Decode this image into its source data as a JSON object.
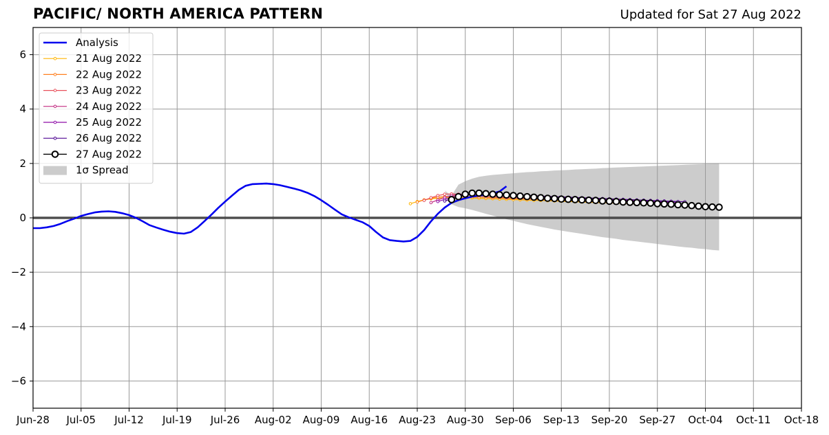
{
  "chart_data": {
    "type": "line",
    "title": "PACIFIC/ NORTH AMERICA PATTERN",
    "subtitle": "Updated for Sat 27 Aug 2022",
    "xlabel": "",
    "ylabel": "",
    "x_range": [
      "2022-06-28",
      "2022-10-18"
    ],
    "ylim": [
      -7,
      7
    ],
    "yticks": [
      -6,
      -4,
      -2,
      0,
      2,
      4,
      6
    ],
    "ytick_labels": [
      "−6",
      "−4",
      "−2",
      "0",
      "2",
      "4",
      "6"
    ],
    "xticks": [
      "2022-06-28",
      "2022-07-05",
      "2022-07-12",
      "2022-07-19",
      "2022-07-26",
      "2022-08-02",
      "2022-08-09",
      "2022-08-16",
      "2022-08-23",
      "2022-08-30",
      "2022-09-06",
      "2022-09-13",
      "2022-09-20",
      "2022-09-27",
      "2022-10-04",
      "2022-10-11",
      "2022-10-18"
    ],
    "xtick_labels": [
      "Jun-28",
      "Jul-05",
      "Jul-12",
      "Jul-19",
      "Jul-26",
      "Aug-02",
      "Aug-09",
      "Aug-16",
      "Aug-23",
      "Aug-30",
      "Sep-06",
      "Sep-13",
      "Sep-20",
      "Sep-27",
      "Oct-04",
      "Oct-11",
      "Oct-18"
    ],
    "grid": true,
    "zero_line": true,
    "legend_position": "top-left",
    "colors": {
      "analysis": "#0000ee",
      "spread": "#cccccc",
      "grid": "#999999"
    },
    "analysis": {
      "name": "Analysis",
      "start_date": "2022-06-28",
      "values": [
        -0.38,
        -0.38,
        -0.35,
        -0.3,
        -0.22,
        -0.12,
        -0.03,
        0.07,
        0.14,
        0.2,
        0.23,
        0.24,
        0.22,
        0.17,
        0.1,
        0.0,
        -0.13,
        -0.27,
        -0.36,
        -0.44,
        -0.51,
        -0.56,
        -0.58,
        -0.52,
        -0.35,
        -0.12,
        0.12,
        0.37,
        0.6,
        0.82,
        1.03,
        1.18,
        1.24,
        1.25,
        1.26,
        1.24,
        1.2,
        1.14,
        1.08,
        1.01,
        0.92,
        0.8,
        0.65,
        0.48,
        0.3,
        0.13,
        0.02,
        -0.07,
        -0.16,
        -0.3,
        -0.52,
        -0.72,
        -0.82,
        -0.85,
        -0.87,
        -0.85,
        -0.7,
        -0.45,
        -0.13,
        0.15,
        0.38,
        0.55,
        0.65,
        0.72,
        0.78,
        0.82,
        0.85,
        0.9,
        0.97,
        1.16
      ]
    },
    "forecasts": [
      {
        "name": "21 Aug 2022",
        "color": "#ffb400",
        "start_date": "2022-08-22",
        "values": [
          0.52,
          0.6,
          0.66,
          0.7,
          0.72,
          0.74,
          0.75,
          0.75,
          0.74,
          0.73,
          0.72,
          0.71,
          0.7,
          0.69,
          0.68,
          0.67,
          0.66,
          0.65,
          0.64,
          0.64,
          0.63,
          0.62,
          0.61,
          0.6,
          0.59,
          0.58,
          0.57,
          0.56,
          0.55,
          0.55,
          0.54,
          0.53,
          0.52,
          0.51,
          0.5,
          0.49
        ]
      },
      {
        "name": "22 Aug 2022",
        "color": "#ff7f1e",
        "start_date": "2022-08-23",
        "values": [
          0.58,
          0.66,
          0.72,
          0.76,
          0.78,
          0.79,
          0.79,
          0.78,
          0.77,
          0.76,
          0.75,
          0.74,
          0.73,
          0.72,
          0.71,
          0.7,
          0.69,
          0.68,
          0.67,
          0.66,
          0.65,
          0.64,
          0.63,
          0.62,
          0.61,
          0.6,
          0.59,
          0.58,
          0.57,
          0.56,
          0.55,
          0.54,
          0.53,
          0.52,
          0.51,
          0.5
        ]
      },
      {
        "name": "23 Aug 2022",
        "color": "#e8505b",
        "start_date": "2022-08-24",
        "values": [
          0.64,
          0.74,
          0.82,
          0.87,
          0.88,
          0.87,
          0.85,
          0.83,
          0.81,
          0.79,
          0.77,
          0.76,
          0.74,
          0.73,
          0.72,
          0.71,
          0.7,
          0.69,
          0.68,
          0.67,
          0.66,
          0.65,
          0.64,
          0.63,
          0.62,
          0.61,
          0.6,
          0.59,
          0.58,
          0.57,
          0.56,
          0.55,
          0.54,
          0.53,
          0.52,
          0.51
        ]
      },
      {
        "name": "24 Aug 2022",
        "color": "#c0267e",
        "start_date": "2022-08-25",
        "values": [
          0.56,
          0.66,
          0.75,
          0.82,
          0.86,
          0.88,
          0.88,
          0.87,
          0.86,
          0.84,
          0.82,
          0.8,
          0.79,
          0.77,
          0.76,
          0.75,
          0.74,
          0.73,
          0.72,
          0.71,
          0.7,
          0.69,
          0.68,
          0.67,
          0.66,
          0.65,
          0.64,
          0.63,
          0.62,
          0.61,
          0.6,
          0.59,
          0.58,
          0.57,
          0.56,
          0.55
        ]
      },
      {
        "name": "25 Aug 2022",
        "color": "#8e0ca8",
        "start_date": "2022-08-26",
        "values": [
          0.6,
          0.68,
          0.76,
          0.82,
          0.86,
          0.88,
          0.89,
          0.88,
          0.87,
          0.86,
          0.84,
          0.83,
          0.81,
          0.8,
          0.78,
          0.77,
          0.76,
          0.75,
          0.74,
          0.73,
          0.72,
          0.71,
          0.7,
          0.69,
          0.68,
          0.67,
          0.66,
          0.65,
          0.64,
          0.63,
          0.62,
          0.61,
          0.6,
          0.59,
          0.58,
          0.57
        ]
      },
      {
        "name": "26 Aug 2022",
        "color": "#4b0090",
        "start_date": "2022-08-27",
        "values": [
          0.62,
          0.7,
          0.78,
          0.84,
          0.88,
          0.9,
          0.91,
          0.9,
          0.89,
          0.88,
          0.86,
          0.85,
          0.83,
          0.82,
          0.8,
          0.79,
          0.78,
          0.77,
          0.76,
          0.75,
          0.74,
          0.73,
          0.72,
          0.71,
          0.7,
          0.69,
          0.68,
          0.67,
          0.66,
          0.65,
          0.64,
          0.63,
          0.62,
          0.61,
          0.6,
          0.59
        ]
      },
      {
        "name": "27 Aug 2022",
        "color": "#000000",
        "start_date": "2022-08-28",
        "marker": "open-circle",
        "values": [
          0.67,
          0.78,
          0.87,
          0.91,
          0.91,
          0.89,
          0.87,
          0.85,
          0.84,
          0.82,
          0.8,
          0.78,
          0.76,
          0.74,
          0.72,
          0.71,
          0.69,
          0.68,
          0.67,
          0.66,
          0.65,
          0.64,
          0.62,
          0.61,
          0.6,
          0.58,
          0.57,
          0.56,
          0.55,
          0.54,
          0.52,
          0.51,
          0.5,
          0.48,
          0.47,
          0.45,
          0.43,
          0.41,
          0.4,
          0.39
        ]
      }
    ],
    "spread": {
      "name": "1σ Spread",
      "start_date": "2022-08-27",
      "upper": [
        1.0,
        0.82,
        1.22,
        1.35,
        1.44,
        1.51,
        1.55,
        1.58,
        1.6,
        1.62,
        1.64,
        1.66,
        1.68,
        1.69,
        1.71,
        1.72,
        1.74,
        1.75,
        1.76,
        1.78,
        1.79,
        1.8,
        1.81,
        1.83,
        1.84,
        1.85,
        1.86,
        1.87,
        1.88,
        1.89,
        1.9,
        1.91,
        1.92,
        1.93,
        1.94,
        1.95,
        1.96,
        1.97,
        1.98,
        1.99,
        2.0
      ],
      "lower": [
        1.0,
        0.5,
        0.4,
        0.35,
        0.29,
        0.22,
        0.15,
        0.08,
        0.01,
        -0.05,
        -0.11,
        -0.17,
        -0.23,
        -0.28,
        -0.33,
        -0.38,
        -0.43,
        -0.47,
        -0.51,
        -0.55,
        -0.59,
        -0.63,
        -0.67,
        -0.71,
        -0.74,
        -0.77,
        -0.81,
        -0.84,
        -0.87,
        -0.9,
        -0.93,
        -0.96,
        -0.99,
        -1.02,
        -1.05,
        -1.08,
        -1.1,
        -1.13,
        -1.15,
        -1.18,
        -1.2
      ]
    }
  }
}
